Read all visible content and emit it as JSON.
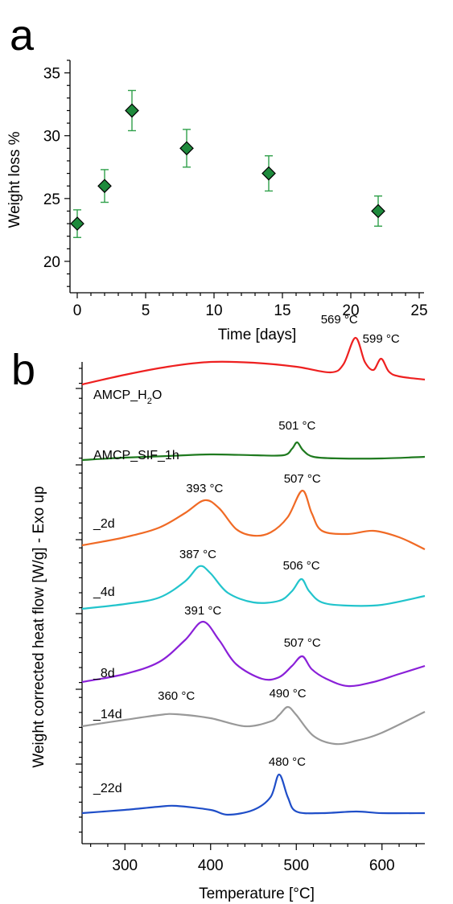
{
  "chart_data": [
    {
      "panel": "a",
      "type": "scatter",
      "xlabel": "Time [days]",
      "ylabel": "Weight loss %",
      "xlim": [
        0,
        25
      ],
      "ylim": [
        17.5,
        36
      ],
      "xticks": [
        0,
        5,
        10,
        15,
        20,
        25
      ],
      "yticks": [
        20,
        25,
        30,
        35
      ],
      "marker": {
        "shape": "diamond",
        "fill": "#1e8a3c",
        "edge": "#000000",
        "errorbar_color": "#2fa04a"
      },
      "points": [
        {
          "x": 0,
          "y": 23,
          "err": 1.1
        },
        {
          "x": 2,
          "y": 26,
          "err": 1.3
        },
        {
          "x": 4,
          "y": 32,
          "err": 1.6
        },
        {
          "x": 8,
          "y": 29,
          "err": 1.5
        },
        {
          "x": 14,
          "y": 27,
          "err": 1.4
        },
        {
          "x": 22,
          "y": 24,
          "err": 1.2
        }
      ]
    },
    {
      "panel": "b",
      "type": "line",
      "xlabel": "Temperature [°C]",
      "ylabel": "Weight corrected heat flow [W/g] - Exo up",
      "xlim": [
        250,
        650
      ],
      "xticks": [
        300,
        400,
        500,
        600
      ],
      "series": [
        {
          "name": "AMCP_H2O",
          "label_main": "AMCP_H",
          "label_sub": "2",
          "label_end": "O",
          "color": "#ee2020",
          "baseline": 478,
          "samples": [
            [
              250,
              0
            ],
            [
              300,
              -12
            ],
            [
              350,
              -22
            ],
            [
              400,
              -28
            ],
            [
              450,
              -27
            ],
            [
              500,
              -22
            ],
            [
              540,
              -15
            ],
            [
              555,
              -25
            ],
            [
              569,
              -58
            ],
            [
              580,
              -28
            ],
            [
              590,
              -18
            ],
            [
              599,
              -32
            ],
            [
              608,
              -16
            ],
            [
              620,
              -10
            ],
            [
              650,
              -6
            ]
          ],
          "peaks": [
            {
              "label": "569 °C",
              "x": 569
            },
            {
              "label": "599 °C",
              "x": 599
            }
          ]
        },
        {
          "name": "AMCP_SIF_1h",
          "color": "#1f7a1f",
          "baseline": 572,
          "samples": [
            [
              250,
              0
            ],
            [
              300,
              -3
            ],
            [
              350,
              -5
            ],
            [
              400,
              -7
            ],
            [
              450,
              -6
            ],
            [
              485,
              -6
            ],
            [
              495,
              -14
            ],
            [
              501,
              -22
            ],
            [
              508,
              -12
            ],
            [
              520,
              -4
            ],
            [
              550,
              -2
            ],
            [
              600,
              -2
            ],
            [
              650,
              -4
            ]
          ],
          "peaks": [
            {
              "label": "501 °C",
              "x": 501
            }
          ]
        },
        {
          "name": "_2d",
          "color": "#f06a25",
          "baseline": 678,
          "samples": [
            [
              250,
              0
            ],
            [
              300,
              -10
            ],
            [
              340,
              -22
            ],
            [
              370,
              -40
            ],
            [
              393,
              -56
            ],
            [
              410,
              -46
            ],
            [
              430,
              -20
            ],
            [
              450,
              -12
            ],
            [
              470,
              -16
            ],
            [
              490,
              -35
            ],
            [
              507,
              -68
            ],
            [
              518,
              -40
            ],
            [
              530,
              -18
            ],
            [
              560,
              -14
            ],
            [
              590,
              -18
            ],
            [
              620,
              -10
            ],
            [
              650,
              5
            ]
          ],
          "peaks": [
            {
              "label": "393 °C",
              "x": 393
            },
            {
              "label": "507 °C",
              "x": 507
            }
          ]
        },
        {
          "name": "_4d",
          "color": "#22c4cc",
          "baseline": 757,
          "samples": [
            [
              250,
              0
            ],
            [
              300,
              -6
            ],
            [
              340,
              -14
            ],
            [
              370,
              -34
            ],
            [
              387,
              -53
            ],
            [
              400,
              -44
            ],
            [
              420,
              -20
            ],
            [
              450,
              -8
            ],
            [
              480,
              -10
            ],
            [
              495,
              -22
            ],
            [
              506,
              -37
            ],
            [
              515,
              -22
            ],
            [
              530,
              -8
            ],
            [
              560,
              -4
            ],
            [
              600,
              -5
            ],
            [
              650,
              -16
            ]
          ],
          "peaks": [
            {
              "label": "387 °C",
              "x": 387
            },
            {
              "label": "506 °C",
              "x": 506
            }
          ]
        },
        {
          "name": "_8d",
          "color": "#8a20d8",
          "baseline": 848,
          "samples": [
            [
              250,
              0
            ],
            [
              300,
              -10
            ],
            [
              340,
              -25
            ],
            [
              370,
              -52
            ],
            [
              391,
              -75
            ],
            [
              410,
              -52
            ],
            [
              430,
              -22
            ],
            [
              460,
              -4
            ],
            [
              480,
              -6
            ],
            [
              495,
              -20
            ],
            [
              507,
              -32
            ],
            [
              518,
              -16
            ],
            [
              535,
              -4
            ],
            [
              560,
              5
            ],
            [
              590,
              0
            ],
            [
              620,
              -10
            ],
            [
              650,
              -20
            ]
          ],
          "peaks": [
            {
              "label": "391 °C",
              "x": 391
            },
            {
              "label": "507 °C",
              "x": 507
            }
          ]
        },
        {
          "name": "_14d",
          "color": "#999999",
          "baseline": 903,
          "samples": [
            [
              250,
              0
            ],
            [
              300,
              -8
            ],
            [
              340,
              -14
            ],
            [
              360,
              -15
            ],
            [
              400,
              -10
            ],
            [
              440,
              0
            ],
            [
              470,
              -6
            ],
            [
              480,
              -14
            ],
            [
              490,
              -24
            ],
            [
              500,
              -14
            ],
            [
              520,
              12
            ],
            [
              545,
              22
            ],
            [
              570,
              18
            ],
            [
              600,
              8
            ],
            [
              650,
              -18
            ]
          ],
          "peaks": [
            {
              "label": "360 °C",
              "x": 360
            },
            {
              "label": "490 °C",
              "x": 490
            }
          ]
        },
        {
          "name": "_22d",
          "color": "#1f4ec8",
          "baseline": 1011,
          "samples": [
            [
              250,
              0
            ],
            [
              300,
              -4
            ],
            [
              340,
              -8
            ],
            [
              360,
              -9
            ],
            [
              400,
              -4
            ],
            [
              420,
              2
            ],
            [
              450,
              -4
            ],
            [
              470,
              -20
            ],
            [
              480,
              -48
            ],
            [
              490,
              -20
            ],
            [
              500,
              -2
            ],
            [
              530,
              0
            ],
            [
              570,
              -2
            ],
            [
              600,
              0
            ],
            [
              650,
              0
            ]
          ],
          "peaks": [
            {
              "label": "480 °C",
              "x": 480
            }
          ]
        }
      ]
    }
  ],
  "panel_labels": {
    "a": "a",
    "b": "b"
  }
}
